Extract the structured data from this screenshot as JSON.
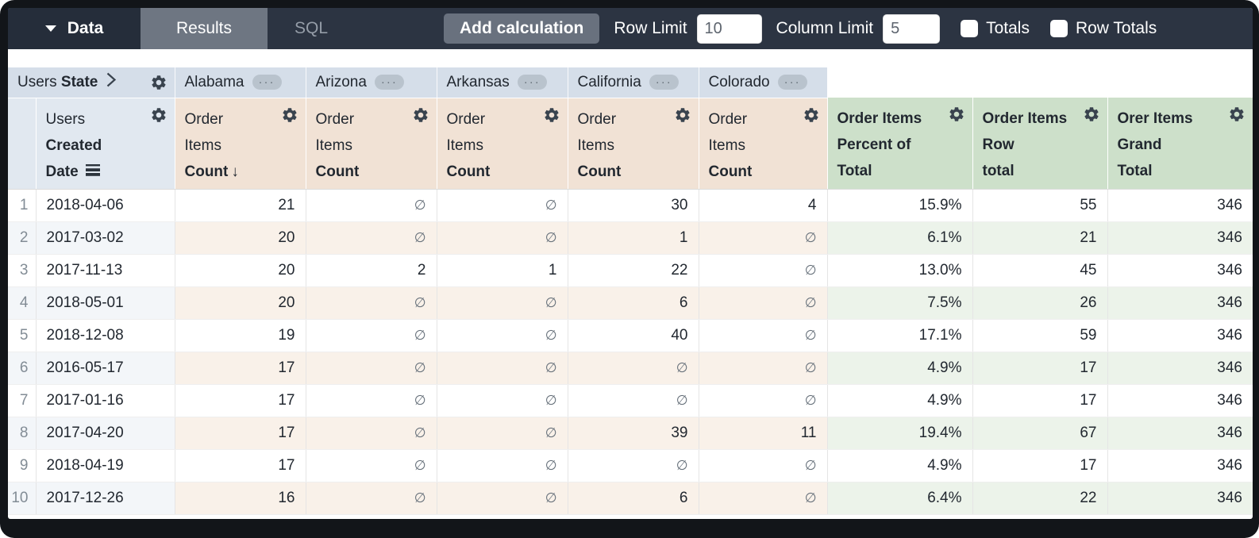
{
  "toolbar": {
    "data_label": "Data",
    "results_label": "Results",
    "sql_label": "SQL",
    "add_calculation_label": "Add calculation",
    "row_limit_label": "Row Limit",
    "row_limit_value": "10",
    "column_limit_label": "Column Limit",
    "column_limit_value": "5",
    "totals_label": "Totals",
    "row_totals_label": "Row Totals",
    "totals_checked": false,
    "row_totals_checked": false
  },
  "colors": {
    "toolbar_bg": "#2c3442",
    "data_tab_bg": "#252d3a",
    "active_tab_bg": "#6e7682",
    "button_bg": "#69717e",
    "pivot_header_bg": "#d5dee9",
    "dimension_header_bg": "#e1e8f0",
    "measure_header_bg": "#f1e2d5",
    "calc_header_bg": "#cde0ca",
    "row_alt_dimension": "#f3f6f9",
    "row_alt_measure": "#f9f1e9",
    "row_alt_calc": "#ecf3ea"
  },
  "table": {
    "pivot": {
      "view_label": "Users",
      "field_label": "State",
      "values": [
        "Alabama",
        "Arizona",
        "Arkansas",
        "California",
        "Colorado"
      ],
      "menu_dots": "···"
    },
    "columns": [
      {
        "kind": "dimension",
        "lines": [
          {
            "t": "Users",
            "b": false
          },
          {
            "t": "Created",
            "b": true
          },
          {
            "t": "Date",
            "b": true
          }
        ],
        "icon": "timeframe"
      },
      {
        "kind": "measure",
        "lines": [
          {
            "t": "Order",
            "b": false
          },
          {
            "t": "Items",
            "b": false
          },
          {
            "t": "Count",
            "b": true
          }
        ],
        "sort": "desc"
      },
      {
        "kind": "measure",
        "lines": [
          {
            "t": "Order",
            "b": false
          },
          {
            "t": "Items",
            "b": false
          },
          {
            "t": "Count",
            "b": true
          }
        ]
      },
      {
        "kind": "measure",
        "lines": [
          {
            "t": "Order",
            "b": false
          },
          {
            "t": "Items",
            "b": false
          },
          {
            "t": "Count",
            "b": true
          }
        ]
      },
      {
        "kind": "measure",
        "lines": [
          {
            "t": "Order",
            "b": false
          },
          {
            "t": "Items",
            "b": false
          },
          {
            "t": "Count",
            "b": true
          }
        ]
      },
      {
        "kind": "measure",
        "lines": [
          {
            "t": "Order",
            "b": false
          },
          {
            "t": "Items",
            "b": false
          },
          {
            "t": "Count",
            "b": true
          }
        ]
      },
      {
        "kind": "calc",
        "lines": [
          {
            "t": "Order Items",
            "b": true
          },
          {
            "t": "Percent of",
            "b": true
          },
          {
            "t": "Total",
            "b": true
          }
        ]
      },
      {
        "kind": "calc",
        "lines": [
          {
            "t": "Order Items",
            "b": true
          },
          {
            "t": "Row",
            "b": true
          },
          {
            "t": "total",
            "b": true
          }
        ]
      },
      {
        "kind": "calc",
        "lines": [
          {
            "t": "Orer Items",
            "b": true
          },
          {
            "t": "Grand",
            "b": true
          },
          {
            "t": "Total",
            "b": true
          }
        ]
      }
    ],
    "sort_arrow": "↓",
    "null_symbol": "∅",
    "rows": [
      {
        "index": "1",
        "date": "2018-04-06",
        "values": [
          21,
          null,
          null,
          30,
          4
        ],
        "calcs": [
          "15.9%",
          "55",
          "346"
        ]
      },
      {
        "index": "2",
        "date": "2017-03-02",
        "values": [
          20,
          null,
          null,
          1,
          null
        ],
        "calcs": [
          "6.1%",
          "21",
          "346"
        ]
      },
      {
        "index": "3",
        "date": "2017-11-13",
        "values": [
          20,
          2,
          1,
          22,
          null
        ],
        "calcs": [
          "13.0%",
          "45",
          "346"
        ]
      },
      {
        "index": "4",
        "date": "2018-05-01",
        "values": [
          20,
          null,
          null,
          6,
          null
        ],
        "calcs": [
          "7.5%",
          "26",
          "346"
        ]
      },
      {
        "index": "5",
        "date": "2018-12-08",
        "values": [
          19,
          null,
          null,
          40,
          null
        ],
        "calcs": [
          "17.1%",
          "59",
          "346"
        ]
      },
      {
        "index": "6",
        "date": "2016-05-17",
        "values": [
          17,
          null,
          null,
          null,
          null
        ],
        "calcs": [
          "4.9%",
          "17",
          "346"
        ]
      },
      {
        "index": "7",
        "date": "2017-01-16",
        "values": [
          17,
          null,
          null,
          null,
          null
        ],
        "calcs": [
          "4.9%",
          "17",
          "346"
        ]
      },
      {
        "index": "8",
        "date": "2017-04-20",
        "values": [
          17,
          null,
          null,
          39,
          11
        ],
        "calcs": [
          "19.4%",
          "67",
          "346"
        ]
      },
      {
        "index": "9",
        "date": "2018-04-19",
        "values": [
          17,
          null,
          null,
          null,
          null
        ],
        "calcs": [
          "4.9%",
          "17",
          "346"
        ]
      },
      {
        "index": "10",
        "date": "2017-12-26",
        "values": [
          16,
          null,
          null,
          6,
          null
        ],
        "calcs": [
          "6.4%",
          "22",
          "346"
        ]
      }
    ]
  }
}
